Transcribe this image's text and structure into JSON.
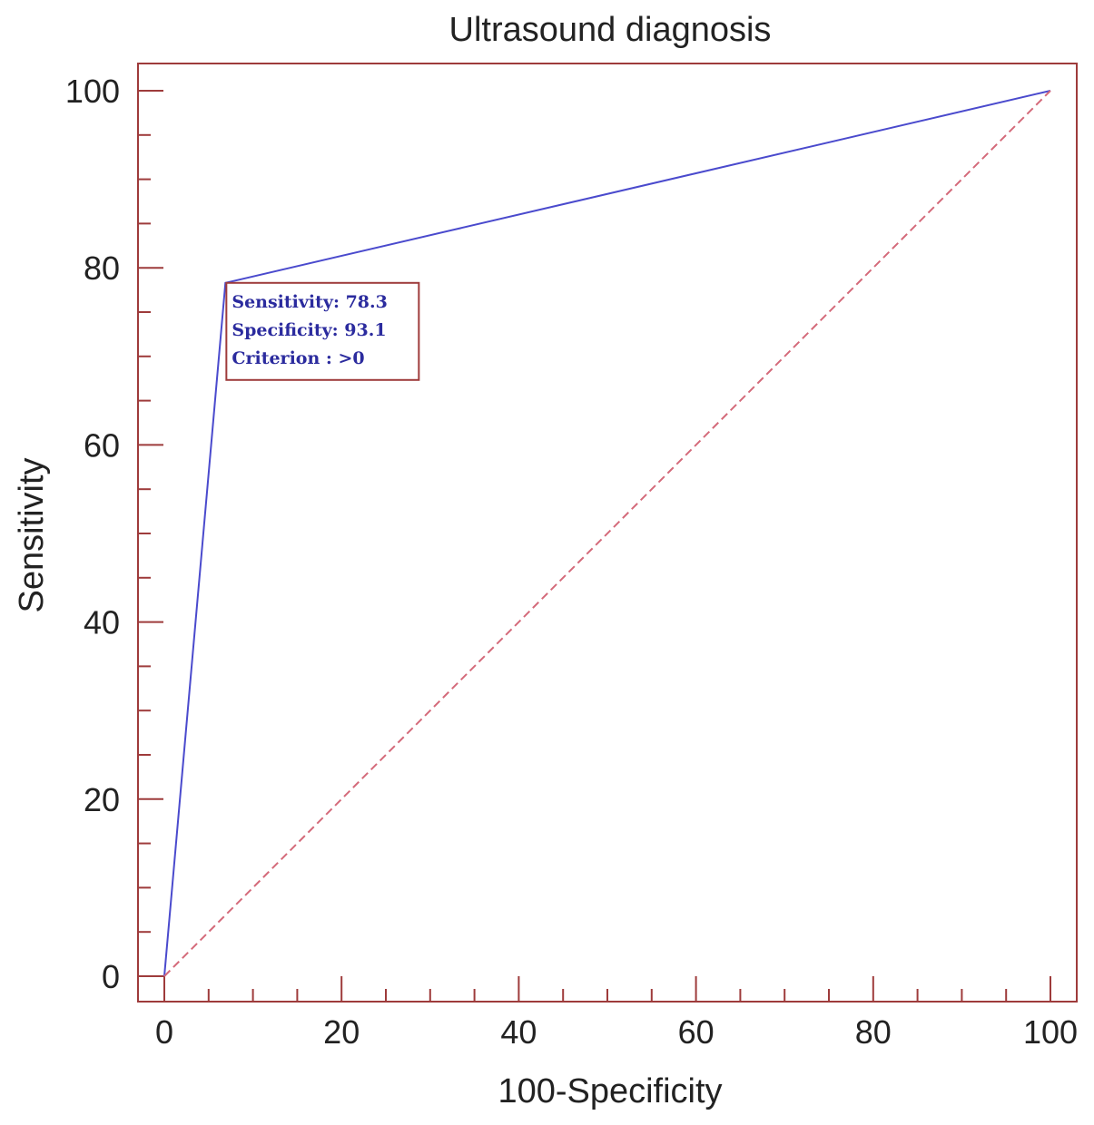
{
  "chart_data": {
    "type": "line",
    "title": "Ultrasound diagnosis",
    "xlabel": "100-Specificity",
    "ylabel": "Sensitivity",
    "xlim": [
      0,
      100
    ],
    "ylim": [
      0,
      100
    ],
    "x_ticks": [
      "0",
      "20",
      "40",
      "60",
      "80",
      "100"
    ],
    "y_ticks": [
      "0",
      "20",
      "40",
      "60",
      "80",
      "100"
    ],
    "grid": false,
    "series": [
      {
        "style": "solid",
        "color": "#4a4acd",
        "x": [
          0,
          6.9,
          100
        ],
        "y": [
          0,
          78.3,
          100
        ]
      },
      {
        "style": "dashed",
        "color": "#d46a7a",
        "x": [
          0,
          100
        ],
        "y": [
          0,
          100
        ]
      }
    ],
    "annotation": {
      "lines": [
        "Sensitivity: 78.3",
        "Specificity: 93.1",
        "Criterion : >0"
      ],
      "x": 6.9,
      "y": 78.3
    },
    "frame_color": "#9e3b3b",
    "annotation_text_color": "#2b2b9e"
  }
}
